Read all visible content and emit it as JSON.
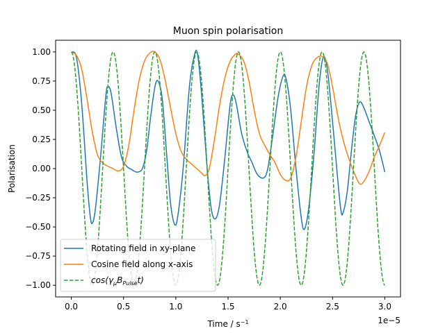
{
  "chart_data": {
    "type": "line",
    "title": "Muon spin polarisation",
    "xlabel": "Time / s⁻¹",
    "ylabel": "Polarisation",
    "x_offset_label": "1e−5",
    "xlim": [
      -0.15,
      3.15
    ],
    "ylim": [
      -1.1,
      1.1
    ],
    "x_unit_scale": 1e-05,
    "xticks": [
      0,
      0.5,
      1.0,
      1.5,
      2.0,
      2.5,
      3.0
    ],
    "xtick_labels": [
      "0.0",
      "0.5",
      "1.0",
      "1.5",
      "2.0",
      "2.5",
      "3.0"
    ],
    "yticks": [
      -1.0,
      -0.75,
      -0.5,
      -0.25,
      0,
      0.25,
      0.5,
      0.75,
      1.0
    ],
    "ytick_labels": [
      "−1.00",
      "−0.75",
      "−0.50",
      "−0.25",
      "0.00",
      "0.25",
      "0.50",
      "0.75",
      "1.00"
    ],
    "grid": false,
    "legend_position": "lower-left",
    "series": [
      {
        "name": "Rotating field in xy-plane",
        "color": "#1f77b4",
        "style": "solid",
        "points": [
          [
            0.0,
            1.0
          ],
          [
            0.05,
            0.95
          ],
          [
            0.1,
            0.55
          ],
          [
            0.15,
            -0.1
          ],
          [
            0.18,
            -0.4
          ],
          [
            0.2,
            -0.47
          ],
          [
            0.23,
            -0.35
          ],
          [
            0.28,
            0.1
          ],
          [
            0.33,
            0.62
          ],
          [
            0.35,
            0.7
          ],
          [
            0.38,
            0.65
          ],
          [
            0.43,
            0.35
          ],
          [
            0.48,
            0.1
          ],
          [
            0.53,
            0.02
          ],
          [
            0.58,
            -0.01
          ],
          [
            0.63,
            -0.03
          ],
          [
            0.68,
            0.0
          ],
          [
            0.72,
            0.15
          ],
          [
            0.76,
            0.45
          ],
          [
            0.8,
            0.7
          ],
          [
            0.83,
            0.75
          ],
          [
            0.87,
            0.6
          ],
          [
            0.91,
            0.15
          ],
          [
            0.95,
            -0.3
          ],
          [
            0.99,
            -0.48
          ],
          [
            1.02,
            -0.4
          ],
          [
            1.07,
            0.0
          ],
          [
            1.13,
            0.7
          ],
          [
            1.18,
            0.98
          ],
          [
            1.21,
            0.97
          ],
          [
            1.25,
            0.6
          ],
          [
            1.3,
            0.0
          ],
          [
            1.34,
            -0.35
          ],
          [
            1.38,
            -0.43
          ],
          [
            1.42,
            -0.3
          ],
          [
            1.47,
            0.1
          ],
          [
            1.52,
            0.55
          ],
          [
            1.55,
            0.63
          ],
          [
            1.58,
            0.55
          ],
          [
            1.63,
            0.3
          ],
          [
            1.68,
            0.15
          ],
          [
            1.73,
            0.05
          ],
          [
            1.78,
            -0.05
          ],
          [
            1.84,
            -0.08
          ],
          [
            1.88,
            0.0
          ],
          [
            1.93,
            0.3
          ],
          [
            1.98,
            0.62
          ],
          [
            2.03,
            0.8
          ],
          [
            2.06,
            0.75
          ],
          [
            2.1,
            0.5
          ],
          [
            2.15,
            0.0
          ],
          [
            2.2,
            -0.42
          ],
          [
            2.23,
            -0.52
          ],
          [
            2.27,
            -0.35
          ],
          [
            2.32,
            0.1
          ],
          [
            2.37,
            0.7
          ],
          [
            2.41,
            0.95
          ],
          [
            2.45,
            0.85
          ],
          [
            2.5,
            0.4
          ],
          [
            2.55,
            -0.1
          ],
          [
            2.58,
            -0.36
          ],
          [
            2.6,
            -0.38
          ],
          [
            2.64,
            -0.2
          ],
          [
            2.68,
            0.15
          ],
          [
            2.72,
            0.45
          ],
          [
            2.76,
            0.57
          ],
          [
            2.8,
            0.52
          ],
          [
            2.85,
            0.4
          ],
          [
            2.9,
            0.28
          ],
          [
            2.95,
            0.15
          ],
          [
            3.0,
            -0.03
          ]
        ]
      },
      {
        "name": "Cosine field along x-axis",
        "color": "#ff7f0e",
        "style": "solid",
        "points": [
          [
            0.0,
            1.0
          ],
          [
            0.05,
            0.97
          ],
          [
            0.1,
            0.85
          ],
          [
            0.15,
            0.6
          ],
          [
            0.2,
            0.32
          ],
          [
            0.25,
            0.12
          ],
          [
            0.3,
            0.05
          ],
          [
            0.35,
            0.02
          ],
          [
            0.4,
            0.0
          ],
          [
            0.45,
            -0.02
          ],
          [
            0.5,
            0.02
          ],
          [
            0.55,
            0.2
          ],
          [
            0.6,
            0.5
          ],
          [
            0.65,
            0.76
          ],
          [
            0.7,
            0.92
          ],
          [
            0.75,
            0.99
          ],
          [
            0.8,
            1.0
          ],
          [
            0.85,
            0.93
          ],
          [
            0.9,
            0.75
          ],
          [
            0.95,
            0.52
          ],
          [
            1.0,
            0.3
          ],
          [
            1.05,
            0.15
          ],
          [
            1.1,
            0.08
          ],
          [
            1.15,
            0.04
          ],
          [
            1.2,
            0.0
          ],
          [
            1.25,
            -0.04
          ],
          [
            1.28,
            -0.06
          ],
          [
            1.32,
            0.0
          ],
          [
            1.37,
            0.25
          ],
          [
            1.42,
            0.55
          ],
          [
            1.47,
            0.78
          ],
          [
            1.52,
            0.92
          ],
          [
            1.57,
            0.98
          ],
          [
            1.6,
            0.98
          ],
          [
            1.65,
            0.92
          ],
          [
            1.7,
            0.75
          ],
          [
            1.75,
            0.5
          ],
          [
            1.8,
            0.3
          ],
          [
            1.85,
            0.2
          ],
          [
            1.9,
            0.12
          ],
          [
            1.95,
            0.05
          ],
          [
            2.0,
            -0.05
          ],
          [
            2.05,
            -0.1
          ],
          [
            2.1,
            -0.08
          ],
          [
            2.15,
            0.1
          ],
          [
            2.2,
            0.4
          ],
          [
            2.25,
            0.7
          ],
          [
            2.3,
            0.88
          ],
          [
            2.35,
            0.95
          ],
          [
            2.4,
            0.96
          ],
          [
            2.45,
            0.9
          ],
          [
            2.5,
            0.7
          ],
          [
            2.55,
            0.45
          ],
          [
            2.6,
            0.25
          ],
          [
            2.65,
            0.1
          ],
          [
            2.7,
            -0.02
          ],
          [
            2.75,
            -0.12
          ],
          [
            2.78,
            -0.13
          ],
          [
            2.82,
            -0.08
          ],
          [
            2.86,
            0.0
          ],
          [
            2.9,
            0.1
          ],
          [
            2.95,
            0.2
          ],
          [
            3.0,
            0.31
          ]
        ]
      },
      {
        "name": "cos(γμBPulset)",
        "legend_main": "cos(γ",
        "legend_sub1": "μ",
        "legend_mid": "B",
        "legend_sub2": "Pulse",
        "legend_end": "t)",
        "color": "#2ca02c",
        "style": "dashed",
        "function": "cosine",
        "period": 0.4,
        "amplitude": 1,
        "x_range": [
          0,
          3.0
        ]
      }
    ]
  }
}
